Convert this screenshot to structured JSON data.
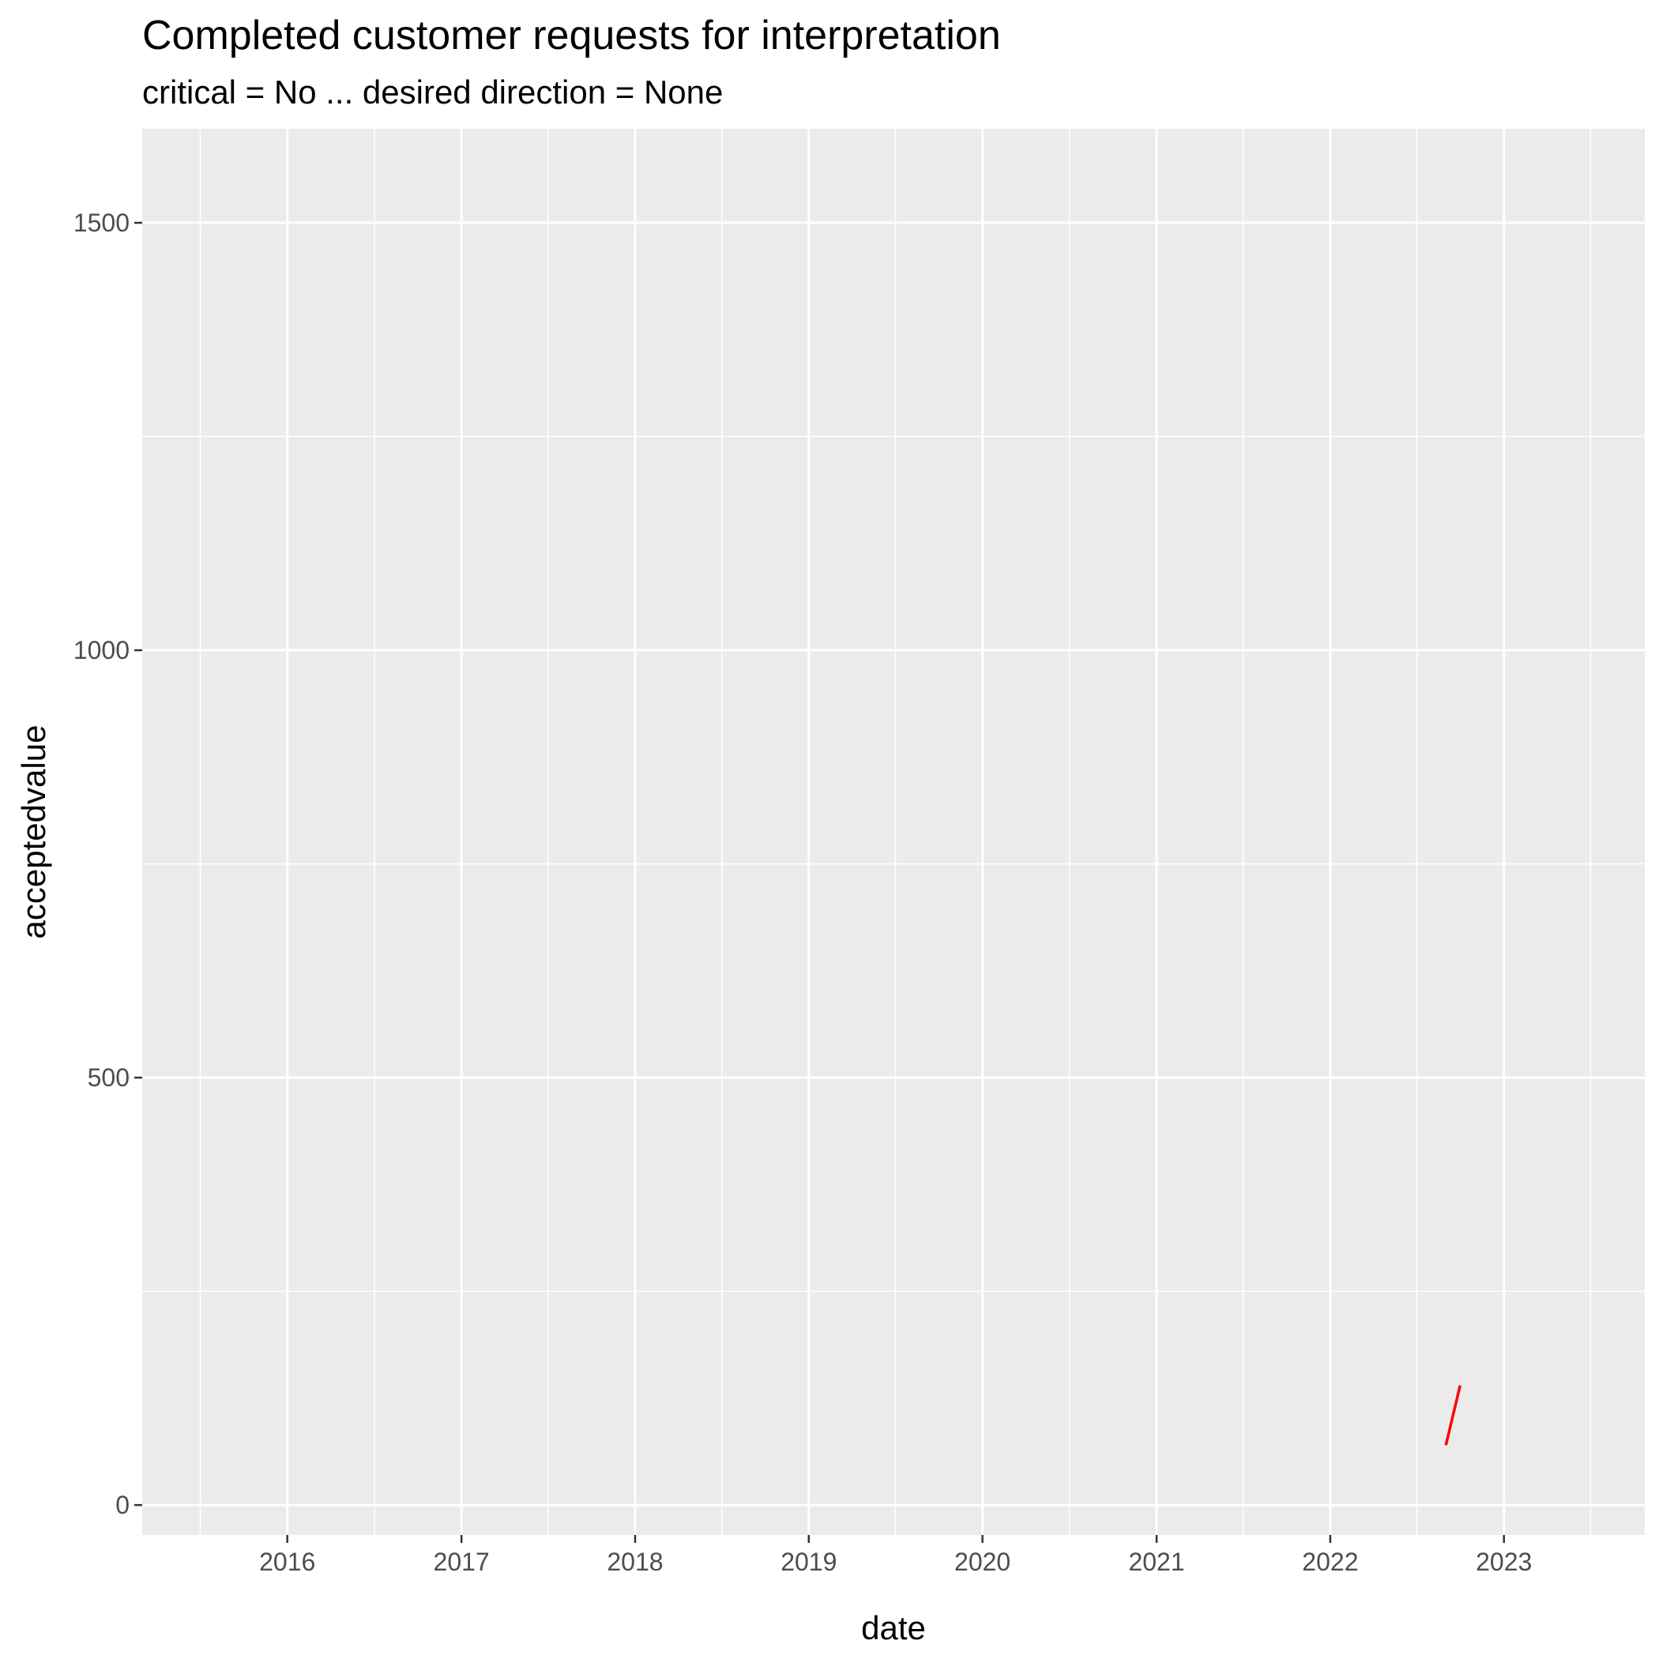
{
  "chart_data": {
    "type": "line",
    "title": "Completed customer requests for interpretation",
    "subtitle": "critical = No ... desired direction = None",
    "xlabel": "date",
    "ylabel": "acceptedvalue",
    "x_ticks": [
      "2016",
      "2017",
      "2018",
      "2019",
      "2020",
      "2021",
      "2022",
      "2023"
    ],
    "y_ticks": [
      "0",
      "500",
      "1000",
      "1500"
    ],
    "xlim": [
      "2015-03-02",
      "2023-10-24"
    ],
    "ylim": [
      -35,
      1610
    ],
    "grid": true,
    "series": [
      {
        "color": "#ff0000",
        "x": [
          "2022-09-01",
          "2022-10-01"
        ],
        "y": [
          70,
          140
        ]
      }
    ]
  }
}
